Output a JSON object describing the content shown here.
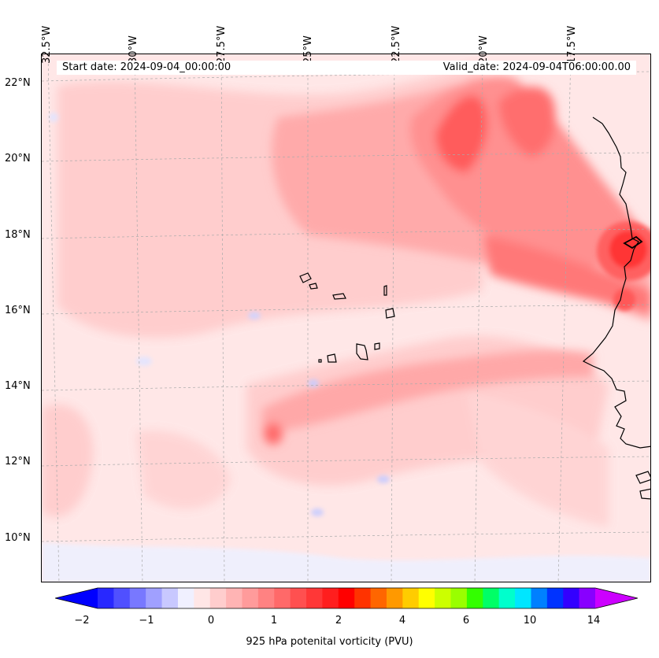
{
  "map": {
    "title_left": "Start date: 2024-09-04_00:00:00",
    "title_right": "Valid_date: 2024-09-04T06:00:00.00",
    "longitude_labels": [
      "32.5°W",
      "30°W",
      "27.5°W",
      "25°W",
      "22.5°W",
      "20°W",
      "17.5°W"
    ],
    "latitude_labels": [
      "22°N",
      "20°N",
      "18°N",
      "16°N",
      "14°N",
      "12°N",
      "10°N"
    ],
    "background_color": "#ffe7e7"
  },
  "colorbar": {
    "label": "925 hPa potenital vorticity (PVU)",
    "ticks": [
      "−2",
      "−1",
      "0",
      "1",
      "2",
      "4",
      "6",
      "10",
      "14"
    ],
    "colors": [
      "#0000ff",
      "#2828ff",
      "#5050ff",
      "#7878ff",
      "#a0a0ff",
      "#c8c8ff",
      "#f0f0ff",
      "#ffe6e6",
      "#ffcdcd",
      "#ffb4b4",
      "#ff9b9b",
      "#ff8282",
      "#ff6969",
      "#ff5050",
      "#ff3737",
      "#ff1e1e",
      "#ff0000",
      "#ff3300",
      "#ff6600",
      "#ff9900",
      "#ffcc00",
      "#ffff00",
      "#ccff00",
      "#99ff00",
      "#33ff00",
      "#00ff66",
      "#00ffcc",
      "#00e6ff",
      "#0080ff",
      "#0033ff",
      "#3300ff",
      "#8800ff",
      "#cc00ff"
    ]
  }
}
